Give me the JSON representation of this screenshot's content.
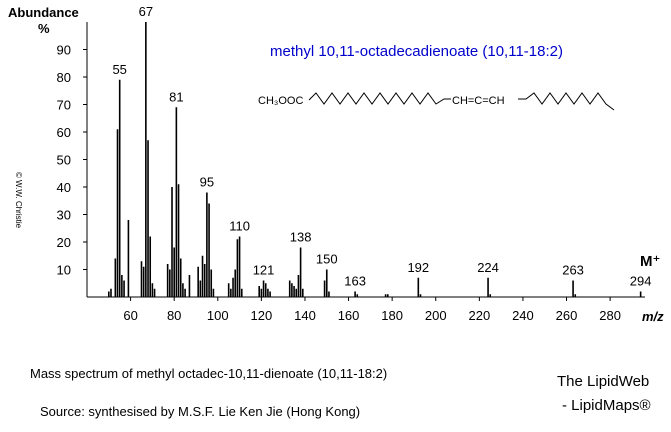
{
  "chart_data": {
    "type": "bar",
    "title": "methyl 10,11-octadecadienoate (10,11-18:2)",
    "structure": {
      "left": "CH₃OOC",
      "middle": "CH=C=CH"
    },
    "y_label": "Abundance",
    "y_unit": "%",
    "x_label": "m/z",
    "copyright": "© W.W. Christie",
    "molecular_ion_label": "M⁺",
    "x": [
      50,
      51,
      53,
      54,
      55,
      56,
      57,
      59,
      65,
      66,
      67,
      68,
      69,
      70,
      71,
      77,
      78,
      79,
      80,
      81,
      82,
      83,
      84,
      85,
      87,
      91,
      92,
      93,
      94,
      95,
      96,
      97,
      98,
      105,
      106,
      107,
      108,
      109,
      110,
      111,
      119,
      120,
      121,
      122,
      123,
      124,
      133,
      134,
      135,
      136,
      137,
      138,
      139,
      149,
      150,
      151,
      163,
      164,
      177,
      178,
      192,
      193,
      224,
      225,
      263,
      264,
      294
    ],
    "values": [
      2,
      3,
      14,
      61,
      79,
      8,
      6,
      28,
      13,
      11,
      100,
      57,
      22,
      5,
      3,
      12,
      10,
      40,
      18,
      69,
      41,
      14,
      5,
      3,
      8,
      11,
      6,
      15,
      12,
      38,
      34,
      10,
      3,
      5,
      3,
      7,
      10,
      21,
      22,
      3,
      4,
      3,
      6,
      5,
      3,
      2,
      6,
      5,
      4,
      3,
      8,
      18,
      3,
      6,
      10,
      2,
      2,
      1,
      1,
      1,
      7,
      1,
      7,
      1,
      6,
      1,
      2
    ],
    "peak_labels": [
      55,
      67,
      81,
      95,
      110,
      121,
      138,
      150,
      163,
      192,
      224,
      263,
      294
    ],
    "color": "#000000",
    "xlim": [
      40,
      296
    ],
    "xticks": [
      60,
      80,
      100,
      120,
      140,
      160,
      180,
      200,
      220,
      240,
      260,
      280
    ],
    "ylim": [
      0,
      100
    ],
    "yticks": [
      10,
      20,
      30,
      40,
      50,
      60,
      70,
      80,
      90
    ]
  },
  "caption": "Mass spectrum of methyl octadec-10,11-dienoate (10,11-18:2)",
  "source": "Source:  synthesised by M.S.F. Lie Ken Jie (Hong Kong)",
  "credits": [
    "The LipidWeb",
    "- LipidMaps®"
  ]
}
